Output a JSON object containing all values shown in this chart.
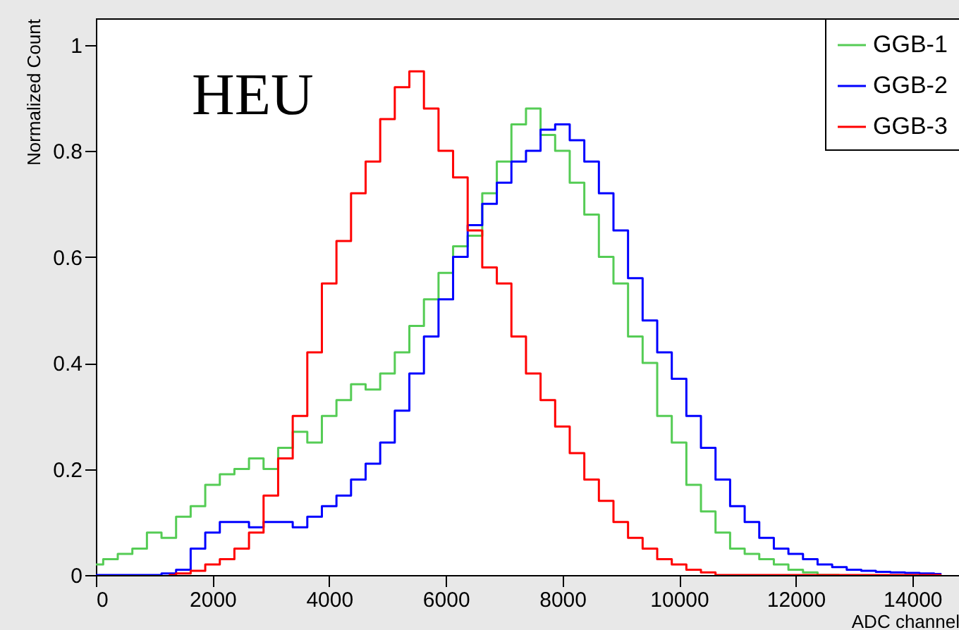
{
  "chart_data": {
    "type": "step",
    "xlabel": "ADC channel",
    "ylabel": "Normalized Count",
    "annotations": [
      "HEU"
    ],
    "x": [
      0,
      250,
      500,
      750,
      1000,
      1250,
      1500,
      1750,
      2000,
      2250,
      2500,
      2750,
      3000,
      3250,
      3500,
      3750,
      4000,
      4250,
      4500,
      4750,
      5000,
      5250,
      5500,
      5750,
      6000,
      6250,
      6500,
      6750,
      7000,
      7250,
      7500,
      7750,
      8000,
      8250,
      8500,
      8750,
      9000,
      9250,
      9500,
      9750,
      10000,
      10250,
      10500,
      10750,
      11000,
      11250,
      11500,
      11750,
      12000,
      12250,
      12500,
      12750,
      13000,
      13250,
      13500,
      13750,
      14000,
      14250,
      14500
    ],
    "series": [
      {
        "name": "GGB-1",
        "color": "#55cc55",
        "values": [
          0.02,
          0.03,
          0.04,
          0.05,
          0.08,
          0.07,
          0.11,
          0.13,
          0.17,
          0.19,
          0.2,
          0.22,
          0.2,
          0.24,
          0.27,
          0.25,
          0.3,
          0.33,
          0.36,
          0.35,
          0.38,
          0.42,
          0.47,
          0.52,
          0.57,
          0.62,
          0.64,
          0.72,
          0.78,
          0.85,
          0.88,
          0.83,
          0.8,
          0.74,
          0.68,
          0.6,
          0.55,
          0.45,
          0.4,
          0.3,
          0.25,
          0.17,
          0.12,
          0.08,
          0.05,
          0.04,
          0.03,
          0.02,
          0.01,
          0.005,
          0,
          0,
          null,
          null,
          null,
          null,
          null,
          null,
          null
        ]
      },
      {
        "name": "GGB-2",
        "color": "#0000ff",
        "values": [
          0,
          0,
          0,
          0,
          0,
          0.003,
          0.01,
          0.05,
          0.08,
          0.1,
          0.1,
          0.09,
          0.1,
          0.1,
          0.09,
          0.11,
          0.13,
          0.15,
          0.18,
          0.21,
          0.25,
          0.31,
          0.38,
          0.45,
          0.52,
          0.6,
          0.66,
          0.7,
          0.74,
          0.78,
          0.8,
          0.84,
          0.85,
          0.82,
          0.78,
          0.72,
          0.65,
          0.56,
          0.48,
          0.42,
          0.37,
          0.3,
          0.24,
          0.18,
          0.13,
          0.1,
          0.07,
          0.05,
          0.04,
          0.03,
          0.02,
          0.015,
          0.01,
          0.008,
          0.006,
          0.005,
          0.004,
          0.003,
          0.002
        ]
      },
      {
        "name": "GGB-3",
        "color": "#ff0000",
        "values": [
          null,
          null,
          null,
          null,
          null,
          0,
          0.003,
          0.008,
          0.02,
          0.03,
          0.05,
          0.08,
          0.15,
          0.22,
          0.3,
          0.42,
          0.55,
          0.63,
          0.72,
          0.78,
          0.86,
          0.92,
          0.95,
          0.88,
          0.8,
          0.75,
          0.65,
          0.58,
          0.55,
          0.45,
          0.38,
          0.33,
          0.28,
          0.23,
          0.18,
          0.14,
          0.1,
          0.07,
          0.05,
          0.03,
          0.02,
          0.01,
          0.005,
          0,
          0,
          0,
          0,
          0,
          0,
          0,
          0,
          0,
          0,
          0,
          0,
          0,
          0,
          0,
          0
        ]
      }
    ],
    "xlim": [
      0,
      14800
    ],
    "xticks": [
      0,
      2000,
      4000,
      6000,
      8000,
      10000,
      12000,
      14000
    ],
    "ylim": [
      0,
      1.05
    ],
    "yticks": [
      0,
      0.2,
      0.4,
      0.6,
      0.8,
      1
    ],
    "legend": "top right",
    "grid": false
  }
}
